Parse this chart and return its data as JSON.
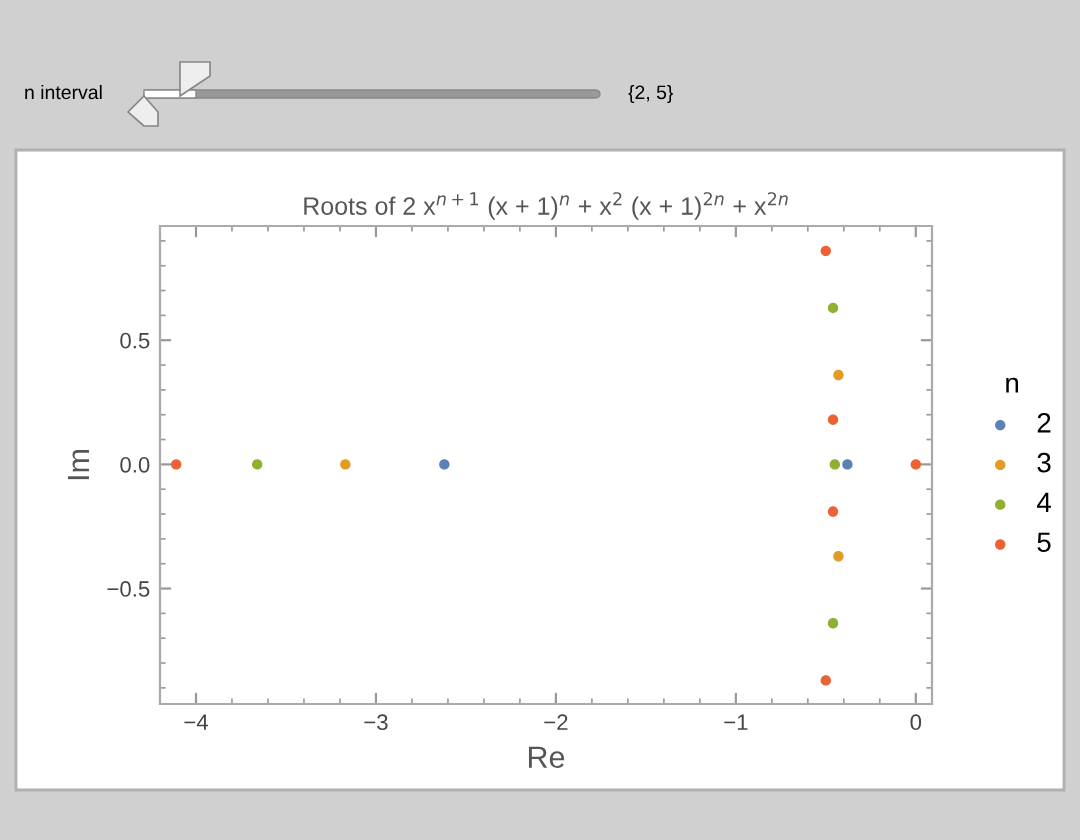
{
  "chart_data": {
    "type": "scatter",
    "title": "Roots of 2 x$^{n+1}$ (x + 1)$^{n}$ + x$^{2}$ (x + 1)$^{2n}$ + x$^{2n}$",
    "xlabel": "Re",
    "ylabel": "Im",
    "legend_title": "n",
    "annotations": [
      "n interval",
      "{2, 5}"
    ],
    "series": [
      {
        "name": "2",
        "color": "#5e81b5",
        "x": [
          -2.62,
          -0.38
        ],
        "values": [
          0.0,
          0.0
        ]
      },
      {
        "name": "3",
        "color": "#e19c24",
        "x": [
          -3.17,
          -0.43,
          -0.43
        ],
        "values": [
          0.0,
          0.36,
          -0.37
        ]
      },
      {
        "name": "4",
        "color": "#8fb032",
        "x": [
          -3.66,
          -0.45,
          -0.46,
          -0.46
        ],
        "values": [
          0.0,
          0.0,
          0.63,
          -0.64
        ]
      },
      {
        "name": "5",
        "color": "#eb6235",
        "x": [
          -4.11,
          0.0,
          -0.46,
          -0.46,
          -0.5,
          -0.5
        ],
        "values": [
          0.0,
          0.0,
          0.18,
          -0.19,
          0.86,
          -0.87
        ]
      }
    ],
    "xlim": [
      -4.2,
      0.09
    ],
    "ylim": [
      -0.965,
      0.96
    ],
    "xticks": [
      {
        "value": -4,
        "label": "−4"
      },
      {
        "value": -3,
        "label": "−3"
      },
      {
        "value": -2,
        "label": "−2"
      },
      {
        "value": -1,
        "label": "−1"
      },
      0
    ],
    "yticks": [
      {
        "value": -0.5,
        "label": "−0.5"
      },
      {
        "value": 0,
        "label": "0.0"
      },
      {
        "value": 0.5,
        "label": "0.5"
      }
    ],
    "marker": "circle",
    "legend": "right",
    "grid": false
  }
}
